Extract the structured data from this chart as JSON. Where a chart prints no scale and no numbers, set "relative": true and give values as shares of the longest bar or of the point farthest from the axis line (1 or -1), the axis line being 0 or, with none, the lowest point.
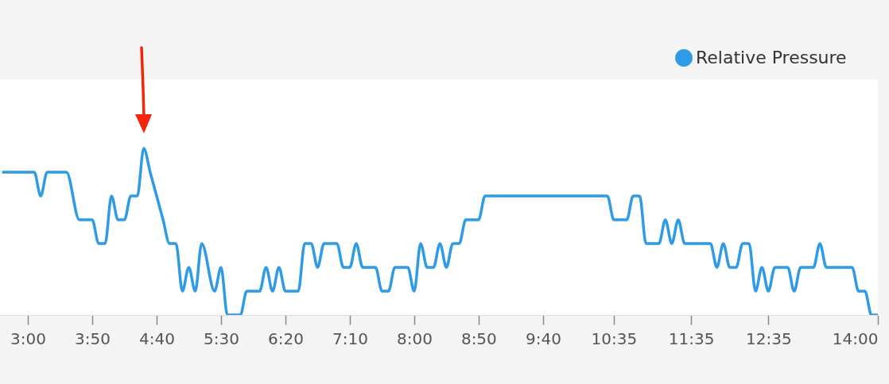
{
  "chart_data": {
    "type": "line",
    "relative": true,
    "legend": "top right",
    "xlim": [
      2.64,
      14
    ],
    "xticks": [
      {
        "value": 3,
        "label": "3:00"
      },
      {
        "value": 3.833,
        "label": "3:50"
      },
      {
        "value": 4.667,
        "label": "4:40"
      },
      {
        "value": 5.5,
        "label": "5:30"
      },
      {
        "value": 6.333,
        "label": "6:20"
      },
      {
        "value": 7.167,
        "label": "7:10"
      },
      {
        "value": 8,
        "label": "8:00"
      },
      {
        "value": 8.833,
        "label": "8:50"
      },
      {
        "value": 9.667,
        "label": "9:40"
      },
      {
        "value": 10.583,
        "label": "10:35"
      },
      {
        "value": 11.583,
        "label": "11:35"
      },
      {
        "value": 12.583,
        "label": "12:35"
      },
      {
        "value": 14,
        "label": "14:00"
      }
    ],
    "x": [
      2.667,
      3.083,
      3.167,
      3.25,
      3.5,
      3.667,
      3.833,
      3.917,
      4,
      4.083,
      4.167,
      4.25,
      4.333,
      4.417,
      4.5,
      4.583,
      4.667,
      4.75,
      4.833,
      4.917,
      5,
      5.083,
      5.167,
      5.25,
      5.417,
      5.5,
      5.583,
      5.75,
      5.833,
      6,
      6.083,
      6.167,
      6.25,
      6.333,
      6.5,
      6.583,
      6.667,
      6.75,
      6.833,
      7,
      7.083,
      7.167,
      7.25,
      7.333,
      7.5,
      7.583,
      7.667,
      7.75,
      7.917,
      8,
      8.083,
      8.167,
      8.25,
      8.333,
      8.417,
      8.5,
      8.583,
      8.667,
      8.833,
      8.917,
      10.5,
      10.583,
      10.75,
      10.833,
      10.917,
      11,
      11.167,
      11.25,
      11.333,
      11.417,
      11.5,
      11.833,
      11.917,
      12,
      12.083,
      12.167,
      12.25,
      12.333,
      12.417,
      12.5,
      12.583,
      12.667,
      12.833,
      12.917,
      13,
      13.167,
      13.25,
      13.333,
      13.667,
      13.75,
      13.833,
      13.917,
      14
    ],
    "series": [
      {
        "name": "Relative Pressure",
        "color": "#2e9be6",
        "values": [
          0.857,
          0.857,
          0.714,
          0.857,
          0.857,
          0.571,
          0.571,
          0.429,
          0.429,
          0.714,
          0.571,
          0.571,
          0.714,
          0.714,
          1,
          0.857,
          0.714,
          0.571,
          0.429,
          0.429,
          0.143,
          0.286,
          0.143,
          0.429,
          0.143,
          0.286,
          0,
          0,
          0.143,
          0.143,
          0.286,
          0.143,
          0.286,
          0.143,
          0.143,
          0.429,
          0.429,
          0.286,
          0.429,
          0.429,
          0.286,
          0.286,
          0.429,
          0.286,
          0.286,
          0.143,
          0.143,
          0.286,
          0.286,
          0.143,
          0.429,
          0.286,
          0.286,
          0.429,
          0.286,
          0.429,
          0.429,
          0.571,
          0.571,
          0.714,
          0.714,
          0.571,
          0.571,
          0.714,
          0.714,
          0.429,
          0.429,
          0.571,
          0.429,
          0.571,
          0.429,
          0.429,
          0.286,
          0.429,
          0.286,
          0.286,
          0.429,
          0.429,
          0.143,
          0.286,
          0.143,
          0.286,
          0.286,
          0.143,
          0.286,
          0.286,
          0.429,
          0.286,
          0.286,
          0.143,
          0.143,
          0,
          0
        ]
      }
    ]
  }
}
